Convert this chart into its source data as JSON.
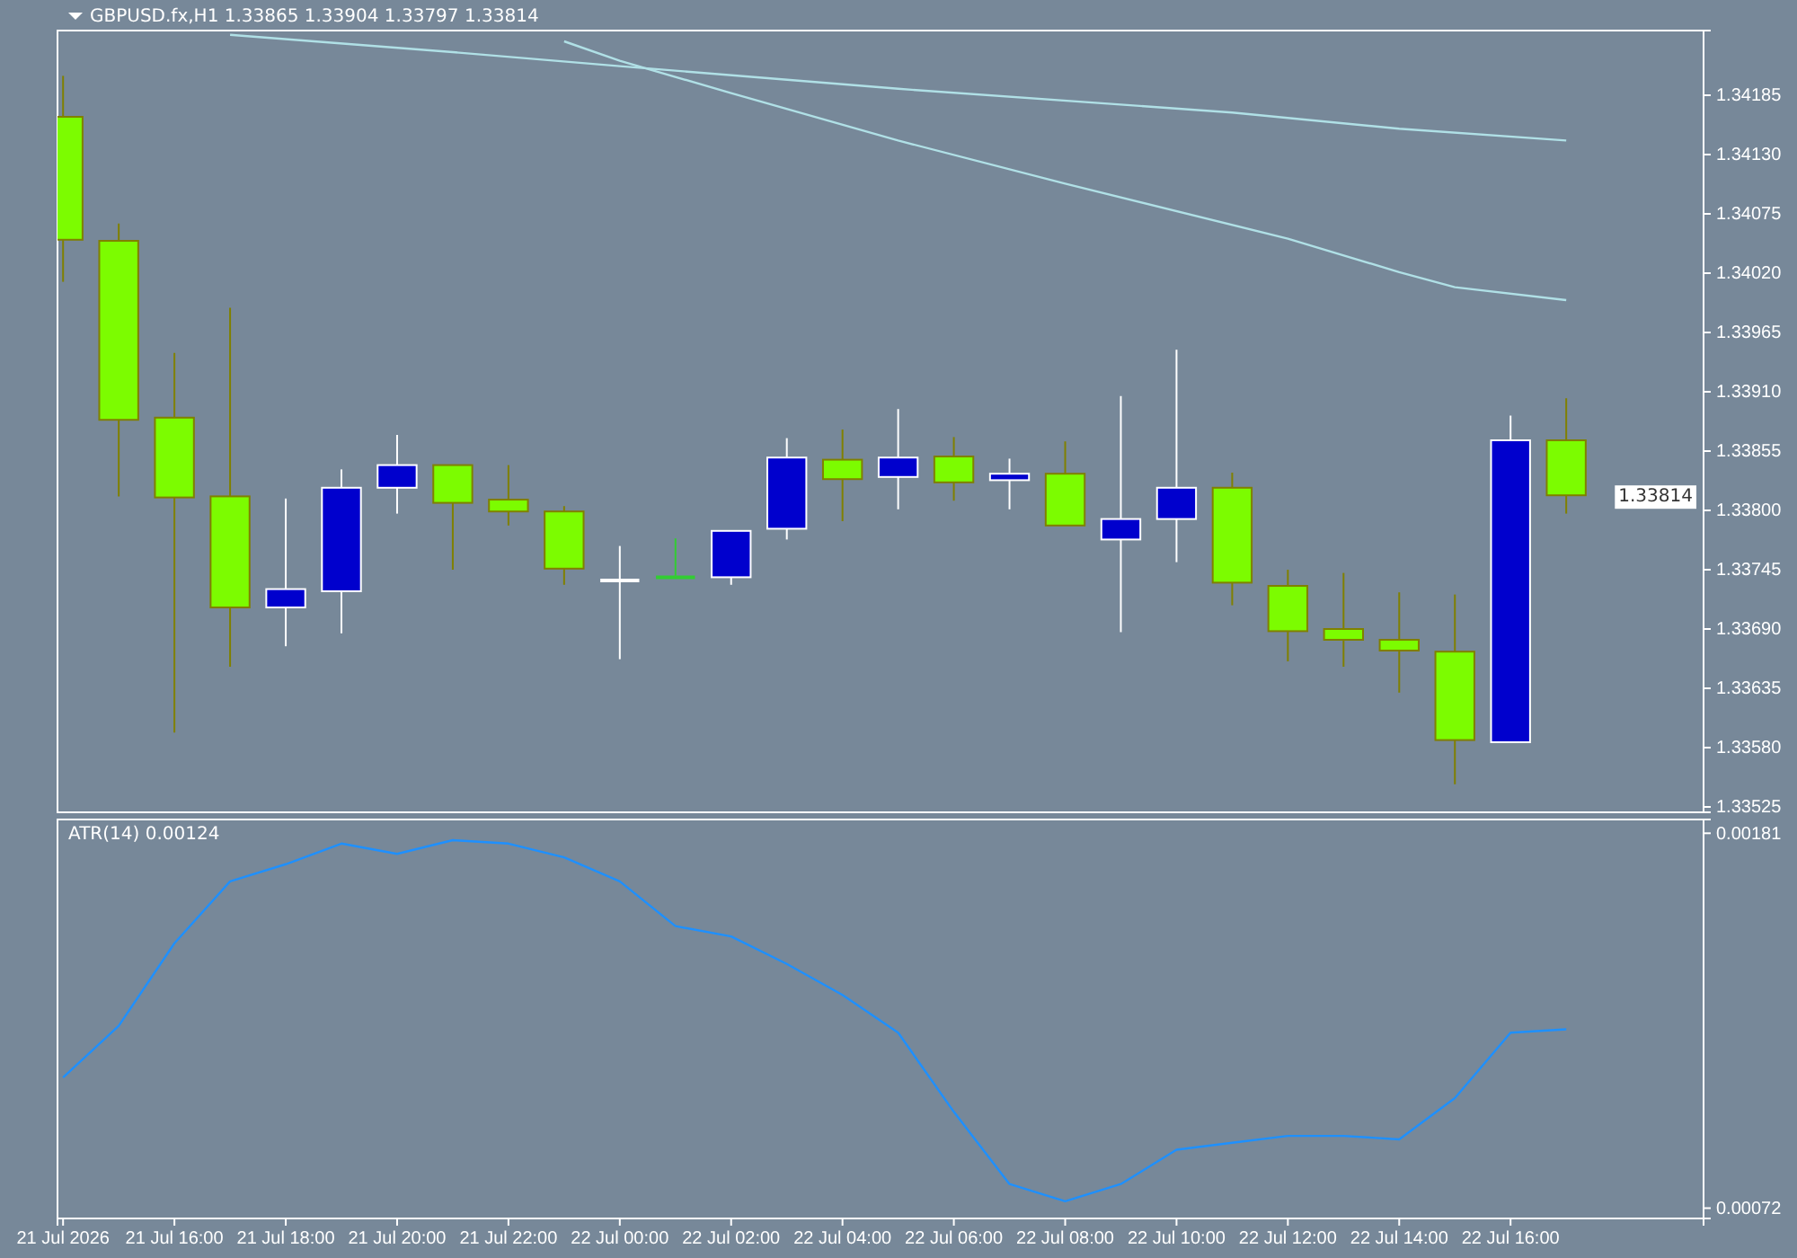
{
  "chart_data": [
    {
      "type": "candlestick",
      "title": "GBPUSD.fx,H1  1.33865 1.33904 1.33797 1.33814",
      "tick_labels": "y",
      "grid": false,
      "x": [
        "2026-07-21T14:00",
        "2026-07-21T15:00",
        "2026-07-21T16:00",
        "2026-07-21T17:00",
        "2026-07-21T18:00",
        "2026-07-21T19:00",
        "2026-07-21T20:00",
        "2026-07-21T21:00",
        "2026-07-21T22:00",
        "2026-07-21T23:00",
        "2026-07-22T00:00",
        "2026-07-22T01:00",
        "2026-07-22T02:00",
        "2026-07-22T03:00",
        "2026-07-22T04:00",
        "2026-07-22T05:00",
        "2026-07-22T06:00",
        "2026-07-22T07:00",
        "2026-07-22T08:00",
        "2026-07-22T09:00",
        "2026-07-22T10:00",
        "2026-07-22T11:00",
        "2026-07-22T12:00",
        "2026-07-22T13:00",
        "2026-07-22T14:00",
        "2026-07-22T15:00",
        "2026-07-22T16:00",
        "2026-07-22T17:00"
      ],
      "ohlc": [
        [
          1.34165,
          1.34203,
          1.34012,
          1.34051
        ],
        [
          1.3405,
          1.34066,
          1.33813,
          1.33884
        ],
        [
          1.33886,
          1.33946,
          1.33594,
          1.33812
        ],
        [
          1.33813,
          1.33988,
          1.33655,
          1.3371
        ],
        [
          1.3371,
          1.33811,
          1.33674,
          1.33727
        ],
        [
          1.33725,
          1.33838,
          1.33686,
          1.33821
        ],
        [
          1.33821,
          1.3387,
          1.33797,
          1.33842
        ],
        [
          1.33842,
          1.33842,
          1.33745,
          1.33807
        ],
        [
          1.3381,
          1.33842,
          1.33786,
          1.33799
        ],
        [
          1.33799,
          1.33804,
          1.33731,
          1.33746
        ],
        [
          1.33735,
          1.33767,
          1.33662,
          1.33735
        ],
        [
          1.33738,
          1.33774,
          1.33738,
          1.33738
        ],
        [
          1.33738,
          1.33781,
          1.33731,
          1.33781
        ],
        [
          1.33783,
          1.33867,
          1.33773,
          1.33849
        ],
        [
          1.33847,
          1.33875,
          1.3379,
          1.33829
        ],
        [
          1.33831,
          1.33894,
          1.33801,
          1.33849
        ],
        [
          1.3385,
          1.33868,
          1.33809,
          1.33826
        ],
        [
          1.33828,
          1.33848,
          1.33801,
          1.33834
        ],
        [
          1.33834,
          1.33864,
          1.33786,
          1.33786
        ],
        [
          1.33773,
          1.33906,
          1.33687,
          1.33792
        ],
        [
          1.33792,
          1.33949,
          1.33752,
          1.33821
        ],
        [
          1.33821,
          1.33835,
          1.33712,
          1.33733
        ],
        [
          1.3373,
          1.33745,
          1.3366,
          1.33688
        ],
        [
          1.3369,
          1.33742,
          1.33655,
          1.3368
        ],
        [
          1.3368,
          1.33724,
          1.33631,
          1.3367
        ],
        [
          1.33669,
          1.33722,
          1.33546,
          1.33587
        ],
        [
          1.33585,
          1.33888,
          1.33585,
          1.33865
        ],
        [
          1.33865,
          1.33904,
          1.33797,
          1.33814
        ]
      ],
      "colors": [
        "#7cfc00",
        "#7cfc00",
        "#7cfc00",
        "#7cfc00",
        "#0000cd",
        "#0000cd",
        "#0000cd",
        "#7cfc00",
        "#7cfc00",
        "#7cfc00",
        "#ffffff",
        "#32cd32",
        "#0000cd",
        "#0000cd",
        "#7cfc00",
        "#0000cd",
        "#7cfc00",
        "#0000cd",
        "#7cfc00",
        "#0000cd",
        "#0000cd",
        "#7cfc00",
        "#7cfc00",
        "#7cfc00",
        "#7cfc00",
        "#7cfc00",
        "#0000cd",
        "#7cfc00"
      ],
      "series": [
        {
          "type": "line",
          "color": "#b0e0e6",
          "x": [
            "2026-07-21T17:00",
            "2026-07-21T21:00",
            "2026-07-22T00:00",
            "2026-07-22T05:00",
            "2026-07-22T11:00",
            "2026-07-22T14:00",
            "2026-07-22T17:00"
          ],
          "values": [
            1.34241,
            1.34225,
            1.34212,
            1.34191,
            1.34169,
            1.34154,
            1.34143
          ]
        },
        {
          "type": "line",
          "color": "#b0e0e6",
          "x": [
            "2026-07-21T23:00",
            "2026-07-22T00:00",
            "2026-07-22T02:00",
            "2026-07-22T05:00",
            "2026-07-22T08:00",
            "2026-07-22T12:00",
            "2026-07-22T14:00",
            "2026-07-22T15:00",
            "2026-07-22T17:00"
          ],
          "values": [
            1.34235,
            1.34217,
            1.34187,
            1.34143,
            1.34103,
            1.34052,
            1.34021,
            1.34007,
            1.33995
          ]
        }
      ],
      "xlim": [
        "2026-07-21T13:54",
        "2026-07-22T19:28"
      ],
      "ylim": [
        1.3352,
        1.34245
      ],
      "yticks": [
        1.34185,
        {
          "value": 1.3413,
          "label": "1.34130"
        },
        1.34075,
        {
          "value": 1.3402,
          "label": "1.34020"
        },
        1.33965,
        {
          "value": 1.3391,
          "label": "1.33910"
        },
        1.33855,
        {
          "value": 1.338,
          "label": "1.33800"
        },
        1.33745,
        {
          "value": 1.3369,
          "label": "1.33690"
        },
        1.33635,
        {
          "value": 1.3358,
          "label": "1.33580"
        },
        1.33525
      ],
      "annotations": [
        {
          "text": "1.33814",
          "x": "2026-07-22T17:00",
          "y": 1.33814
        }
      ]
    },
    {
      "type": "line",
      "title": "ATR(14) 0.00124",
      "grid": false,
      "x": [
        "2026-07-21T14:00",
        "2026-07-21T15:00",
        "2026-07-21T16:00",
        "2026-07-21T17:00",
        "2026-07-21T18:00",
        "2026-07-21T19:00",
        "2026-07-21T20:00",
        "2026-07-21T21:00",
        "2026-07-21T22:00",
        "2026-07-21T23:00",
        "2026-07-22T00:00",
        "2026-07-22T01:00",
        "2026-07-22T02:00",
        "2026-07-22T03:00",
        "2026-07-22T04:00",
        "2026-07-22T05:00",
        "2026-07-22T06:00",
        "2026-07-22T07:00",
        "2026-07-22T08:00",
        "2026-07-22T09:00",
        "2026-07-22T10:00",
        "2026-07-22T11:00",
        "2026-07-22T12:00",
        "2026-07-22T13:00",
        "2026-07-22T14:00",
        "2026-07-22T15:00",
        "2026-07-22T16:00",
        "2026-07-22T17:00"
      ],
      "series": [
        {
          "color": "#1e90ff",
          "values": [
            0.0011,
            0.00125,
            0.00149,
            0.00167,
            0.00172,
            0.00178,
            0.00175,
            0.00179,
            0.00178,
            0.00174,
            0.00167,
            0.00154,
            0.00151,
            0.00143,
            0.00134,
            0.00123,
            0.001,
            0.00079,
            0.00074,
            0.00079,
            0.00089,
            0.00091,
            0.00093,
            0.00093,
            0.00092,
            0.00104,
            0.00123,
            0.00124
          ]
        }
      ],
      "xlim": [
        "2026-07-21T13:54",
        "2026-07-22T19:28"
      ],
      "ylim": [
        0.00069,
        0.00185
      ],
      "yticks": [
        0.00181,
        0.00072
      ],
      "xticks": [
        {
          "value": "2026-07-21T14:00",
          "label": "21 Jul 2026"
        },
        {
          "value": "2026-07-21T16:00",
          "label": "21 Jul 16:00"
        },
        {
          "value": "2026-07-21T18:00",
          "label": "21 Jul 18:00"
        },
        {
          "value": "2026-07-21T20:00",
          "label": "21 Jul 20:00"
        },
        {
          "value": "2026-07-21T22:00",
          "label": "21 Jul 22:00"
        },
        {
          "value": "2026-07-22T00:00",
          "label": "22 Jul 00:00"
        },
        {
          "value": "2026-07-22T02:00",
          "label": "22 Jul 02:00"
        },
        {
          "value": "2026-07-22T04:00",
          "label": "22 Jul 04:00"
        },
        {
          "value": "2026-07-22T06:00",
          "label": "22 Jul 06:00"
        },
        {
          "value": "2026-07-22T08:00",
          "label": "22 Jul 08:00"
        },
        {
          "value": "2026-07-22T10:00",
          "label": "22 Jul 10:00"
        },
        {
          "value": "2026-07-22T12:00",
          "label": "22 Jul 12:00"
        },
        {
          "value": "2026-07-22T14:00",
          "label": "22 Jul 14:00"
        },
        {
          "value": "2026-07-22T16:00",
          "label": "22 Jul 16:00"
        }
      ]
    }
  ]
}
